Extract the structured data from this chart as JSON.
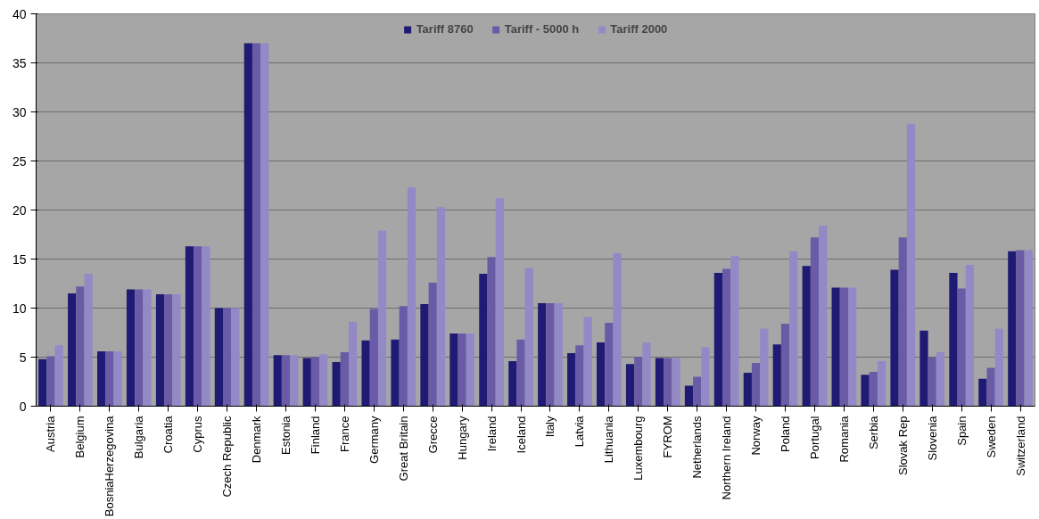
{
  "chart_data": {
    "type": "bar",
    "categories": [
      "Austria",
      "Belgium",
      "BosniaHerzegovina",
      "Bulgaria",
      "Croatia",
      "Cyprus",
      "Czech Republic",
      "Denmark",
      "Estonia",
      "Finland",
      "France",
      "Germany",
      "Great Britain",
      "Grecce",
      "Hungary",
      "Ireland",
      "Iceland",
      "Italy",
      "Latvia",
      "Lithuania",
      "Luxembourg",
      "FYROM",
      "Netherlands",
      "Northern Ireland",
      "Norway",
      "Poland",
      "Portugal",
      "Romania",
      "Serbia",
      "Slovak Rep",
      "Slovenia",
      "Spain",
      "Sweden",
      "Switzerland"
    ],
    "series": [
      {
        "name": "Tariff 8760",
        "color": "#1f1a73",
        "values": [
          4.8,
          11.5,
          5.6,
          11.9,
          11.4,
          16.3,
          10,
          37,
          5.2,
          4.9,
          4.5,
          6.7,
          6.8,
          10.4,
          7.4,
          13.5,
          4.6,
          10.5,
          5.4,
          6.5,
          4.3,
          4.9,
          2.1,
          13.6,
          3.4,
          6.3,
          14.3,
          12.1,
          3.2,
          13.9,
          7.7,
          13.6,
          2.8,
          15.8
        ]
      },
      {
        "name": "Tariff - 5000 h",
        "color": "#6a5ba6",
        "values": [
          5.1,
          12.2,
          5.6,
          11.9,
          11.4,
          16.3,
          10,
          37,
          5.2,
          5.0,
          5.5,
          9.9,
          10.2,
          12.6,
          7.4,
          15.2,
          6.8,
          10.5,
          6.2,
          8.5,
          5.0,
          4.9,
          3.0,
          14.0,
          4.4,
          8.4,
          17.2,
          12.1,
          3.5,
          17.2,
          5.0,
          12.0,
          3.9,
          15.9
        ]
      },
      {
        "name": "Tariff 2000",
        "color": "#9389c6",
        "values": [
          6.2,
          13.5,
          5.6,
          11.9,
          11.4,
          16.3,
          10,
          37,
          5.2,
          5.3,
          8.6,
          17.9,
          22.3,
          20.3,
          7.4,
          21.2,
          14.1,
          10.5,
          9.1,
          15.6,
          6.5,
          4.9,
          6.0,
          15.3,
          7.9,
          15.8,
          18.4,
          12.1,
          4.6,
          28.8,
          5.5,
          14.4,
          7.9,
          15.9
        ]
      }
    ],
    "ylim": [
      0,
      40
    ],
    "yticks": [
      0,
      5,
      10,
      15,
      20,
      25,
      30,
      35,
      40
    ],
    "grid": "y",
    "legend": "top"
  }
}
